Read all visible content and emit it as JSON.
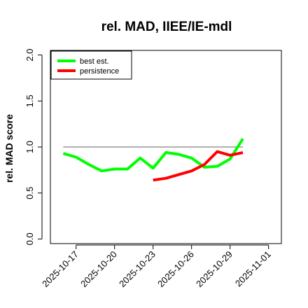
{
  "chart_data": {
    "type": "line",
    "title": "rel. MAD, IIEE/IE-mdl",
    "xlabel": "",
    "ylabel": "rel. MAD score",
    "ylim": [
      -0.05,
      2.05
    ],
    "xlim": [
      "2025-10-15",
      "2025-11-02"
    ],
    "y_ticks": [
      0.0,
      0.5,
      1.0,
      1.5,
      2.0
    ],
    "y_tick_labels": [
      "0.0",
      "0.5",
      "1.0",
      "1.5",
      "2.0"
    ],
    "x_ticks": [
      "2025-10-17",
      "2025-10-20",
      "2025-10-23",
      "2025-10-26",
      "2025-10-29",
      "2025-11-01"
    ],
    "x_tick_labels": [
      "2025-10-17",
      "2025-10-20",
      "2025-10-23",
      "2025-10-26",
      "2025-10-29",
      "2025-11-01"
    ],
    "grid": false,
    "legend_position": "top-left",
    "reference_line": {
      "y": 1.0,
      "x_range": [
        "2025-10-16",
        "2025-10-30"
      ],
      "color": "#808080"
    },
    "series": [
      {
        "name": "best est.",
        "color": "#00ff00",
        "x": [
          "2025-10-16",
          "2025-10-17",
          "2025-10-18",
          "2025-10-19",
          "2025-10-20",
          "2025-10-21",
          "2025-10-22",
          "2025-10-23",
          "2025-10-24",
          "2025-10-25",
          "2025-10-26",
          "2025-10-27",
          "2025-10-28",
          "2025-10-29",
          "2025-10-30"
        ],
        "values": [
          0.93,
          0.89,
          0.81,
          0.74,
          0.76,
          0.76,
          0.88,
          0.77,
          0.94,
          0.92,
          0.88,
          0.78,
          0.79,
          0.87,
          1.09
        ]
      },
      {
        "name": "persistence",
        "color": "#ff0000",
        "x": [
          "2025-10-23",
          "2025-10-24",
          "2025-10-25",
          "2025-10-26",
          "2025-10-27",
          "2025-10-28",
          "2025-10-29",
          "2025-10-30"
        ],
        "values": [
          0.64,
          0.66,
          0.7,
          0.74,
          0.81,
          0.95,
          0.91,
          0.94
        ]
      }
    ]
  }
}
